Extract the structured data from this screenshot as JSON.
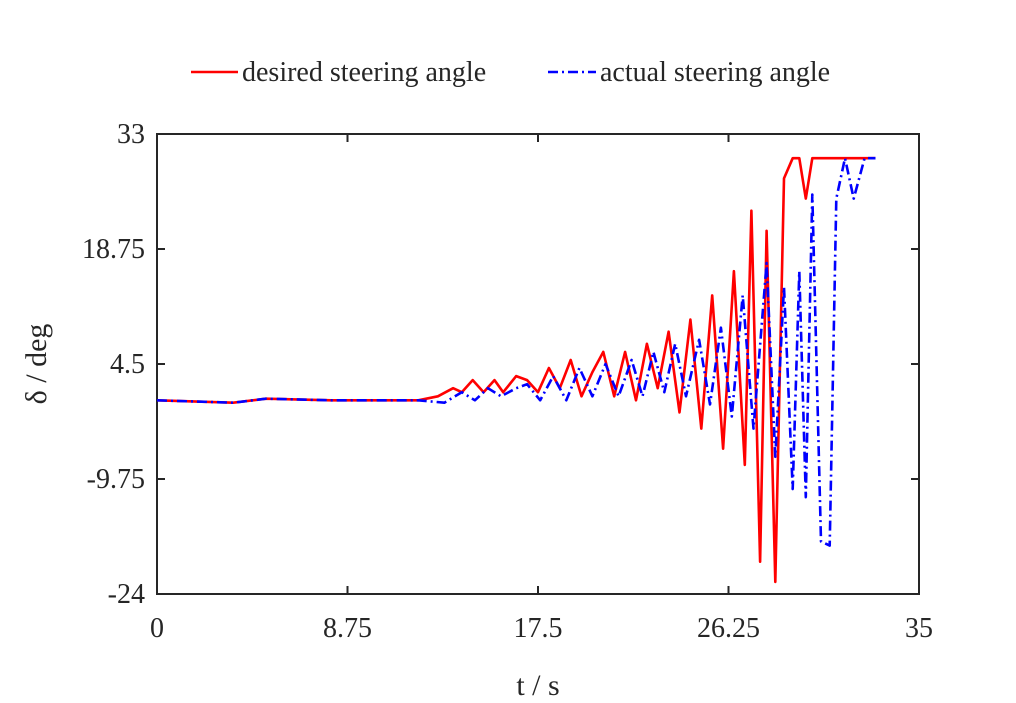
{
  "chart_data": {
    "type": "line",
    "title": "",
    "xlabel": "t / s",
    "ylabel": "δ / deg",
    "xlim": [
      0,
      35
    ],
    "ylim": [
      -24,
      33
    ],
    "xticks": [
      "0",
      "8.75",
      "17.5",
      "26.25",
      "35"
    ],
    "yticks": [
      "33",
      "18.75",
      "4.5",
      "-9.75",
      "-24"
    ],
    "grid": false,
    "legend_position": "top-center",
    "series": [
      {
        "name": "desired steering angle",
        "color": "#ff0000",
        "style": "solid",
        "x": [
          0,
          3.5,
          5,
          8,
          10,
          12,
          12.9,
          13.6,
          14.0,
          14.5,
          15.0,
          15.5,
          15.9,
          16.5,
          17.0,
          17.5,
          18.0,
          18.5,
          19.0,
          19.5,
          20.0,
          20.5,
          21.0,
          21.5,
          22.0,
          22.5,
          23.0,
          23.5,
          24.0,
          24.5,
          25.0,
          25.5,
          26.0,
          26.5,
          27.0,
          27.3,
          27.7,
          28.0,
          28.4,
          28.8,
          29.2,
          29.5,
          29.8,
          30.1,
          30.5,
          30.9,
          31.3,
          31.6,
          32.0,
          33
        ],
        "y": [
          0,
          -0.3,
          0.2,
          0,
          0,
          0,
          0.5,
          1.5,
          1.0,
          2.5,
          1.0,
          2.5,
          1.0,
          3.0,
          2.5,
          1.0,
          4.0,
          1.5,
          5.0,
          0.5,
          3.5,
          6.0,
          0.5,
          6.0,
          0,
          7.0,
          1.5,
          8.5,
          -1.5,
          10.0,
          -3.5,
          13.0,
          -6.0,
          16.0,
          -8.0,
          23.5,
          -20.0,
          21.0,
          -22.5,
          27.5,
          30.0,
          30.0,
          25.0,
          30.0,
          30.0,
          30.0,
          30.0,
          30.0,
          30.0,
          30.0
        ]
      },
      {
        "name": "actual steering angle",
        "color": "#0000ff",
        "style": "dash-dot",
        "x": [
          0,
          3.5,
          5,
          8,
          10,
          12,
          13.2,
          14.0,
          14.6,
          15.2,
          15.8,
          16.5,
          17.0,
          17.6,
          18.2,
          18.8,
          19.4,
          20.0,
          20.6,
          21.2,
          21.8,
          22.3,
          22.8,
          23.3,
          23.8,
          24.3,
          24.9,
          25.4,
          25.9,
          26.4,
          26.9,
          27.4,
          28.0,
          28.4,
          28.8,
          29.2,
          29.5,
          29.8,
          30.1,
          30.5,
          30.9,
          31.2,
          31.6,
          32.0,
          32.5,
          33.0
        ],
        "y": [
          0,
          -0.3,
          0.2,
          0,
          0,
          0,
          -0.3,
          1.0,
          0,
          1.5,
          0.5,
          1.5,
          2.0,
          0,
          3.0,
          0,
          4.0,
          0.5,
          4.5,
          0.5,
          5.0,
          0.5,
          6.0,
          1.0,
          7.0,
          0.5,
          7.5,
          -0.5,
          9.0,
          -2.0,
          13.0,
          -3.5,
          17.0,
          -7.0,
          14.0,
          -11.0,
          16.0,
          -12.0,
          25.5,
          -17.5,
          -18.0,
          25.0,
          30.0,
          25.0,
          30.0,
          30.0
        ]
      }
    ]
  }
}
